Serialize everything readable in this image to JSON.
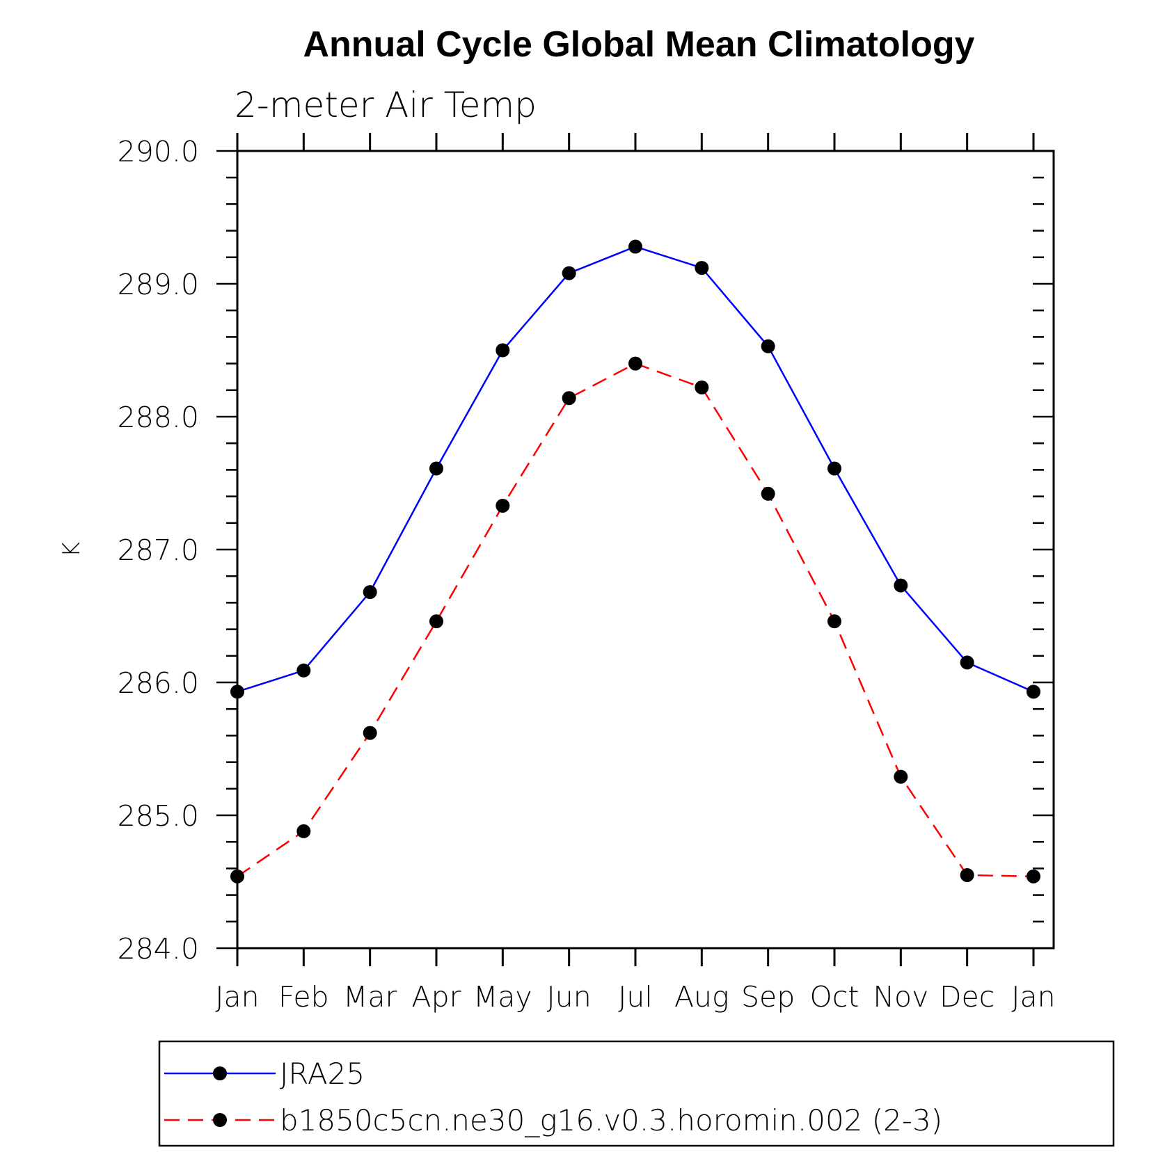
{
  "chart_data": {
    "type": "line",
    "title": "Annual Cycle Global Mean Climatology",
    "subtitle": "2-meter Air Temp",
    "xlabel": "",
    "ylabel": "K",
    "categories": [
      "Jan",
      "Feb",
      "Mar",
      "Apr",
      "May",
      "Jun",
      "Jul",
      "Aug",
      "Sep",
      "Oct",
      "Nov",
      "Dec",
      "Jan"
    ],
    "ylim": [
      284.0,
      290.0
    ],
    "yticks": [
      "284.0",
      "285.0",
      "286.0",
      "287.0",
      "288.0",
      "289.0",
      "290.0"
    ],
    "grid": false,
    "legend_position": "bottom",
    "series": [
      {
        "name": "JRA25",
        "color": "#0000ff",
        "line_style": "solid",
        "marker": "filled-circle",
        "values": [
          285.93,
          286.09,
          286.68,
          287.61,
          288.5,
          289.08,
          289.28,
          289.12,
          288.53,
          287.61,
          286.73,
          286.15,
          285.93
        ]
      },
      {
        "name": "b1850c5cn.ne30_g16.v0.3.horomin.002 (2-3)",
        "color": "#ff0000",
        "line_style": "dashed",
        "marker": "filled-circle",
        "values": [
          284.54,
          284.88,
          285.62,
          286.46,
          287.33,
          288.14,
          288.4,
          288.22,
          287.42,
          286.46,
          285.29,
          284.55,
          284.54
        ]
      }
    ]
  }
}
